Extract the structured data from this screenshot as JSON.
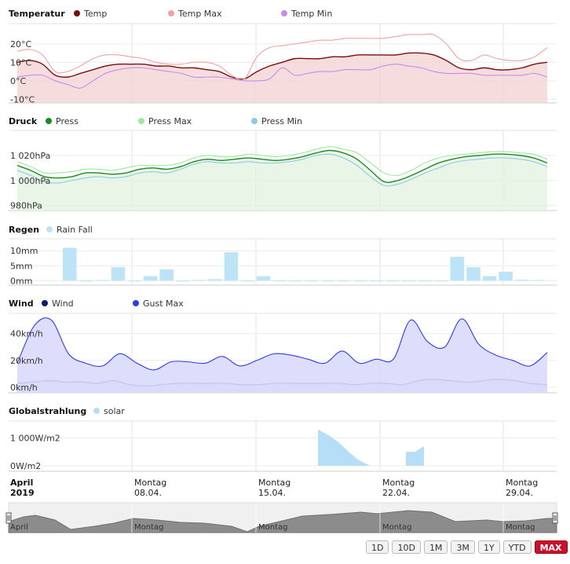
{
  "chart_data": [
    {
      "type": "area",
      "title": "Temperatur",
      "y_tick_labels": [
        "20°C",
        "10°C",
        "0°C",
        "-10°C"
      ],
      "y_ticks": [
        20,
        10,
        0,
        -10
      ],
      "ylim": [
        -12,
        31
      ],
      "series": [
        {
          "name": "Temp",
          "color": "#7a0d0d",
          "values": [
            10,
            11,
            9,
            3,
            2,
            4,
            6,
            8,
            9,
            9,
            9,
            8,
            8,
            7,
            7,
            6,
            5,
            2,
            1,
            5,
            8,
            10,
            12,
            12,
            12,
            13,
            13,
            14,
            14,
            14,
            14,
            15,
            15,
            14,
            11,
            7,
            6,
            7,
            6,
            6,
            7,
            9,
            10
          ]
        },
        {
          "name": "Temp Max",
          "color": "#f1a3a3",
          "values": [
            16,
            17,
            14,
            5,
            5,
            8,
            12,
            14,
            14,
            13,
            12,
            10,
            9,
            9,
            10,
            10,
            8,
            3,
            1,
            13,
            18,
            19,
            20,
            21,
            22,
            22,
            23,
            23,
            23,
            23,
            24,
            25,
            25,
            25,
            20,
            12,
            11,
            14,
            12,
            11,
            11,
            13,
            18
          ]
        },
        {
          "name": "Temp Min",
          "color": "#c58af0",
          "values": [
            2,
            3,
            3,
            0,
            -2,
            -4,
            0,
            4,
            6,
            7,
            7,
            6,
            5,
            4,
            2,
            2,
            2,
            1,
            0,
            0,
            1,
            7,
            3,
            4,
            5,
            5,
            6,
            6,
            6,
            8,
            9,
            8,
            7,
            5,
            4,
            4,
            4,
            3,
            3,
            3,
            3,
            4,
            2
          ]
        }
      ]
    },
    {
      "type": "area",
      "title": "Druck",
      "y_tick_labels": [
        "1 020hPa",
        "1 000hPa",
        "980hPa"
      ],
      "y_ticks": [
        1020,
        1000,
        980
      ],
      "ylim": [
        976,
        1040
      ],
      "series": [
        {
          "name": "Press",
          "color": "#1f8a1f",
          "values": [
            1012,
            1008,
            1003,
            1002,
            1003,
            1006,
            1006,
            1005,
            1006,
            1009,
            1010,
            1009,
            1011,
            1015,
            1017,
            1016,
            1017,
            1018,
            1017,
            1016,
            1017,
            1019,
            1022,
            1024,
            1022,
            1017,
            1008,
            999,
            1000,
            1004,
            1009,
            1014,
            1017,
            1019,
            1020,
            1021,
            1021,
            1020,
            1018,
            1014
          ]
        },
        {
          "name": "Press Max",
          "color": "#9bea9b",
          "values": [
            1015,
            1011,
            1006,
            1006,
            1007,
            1009,
            1009,
            1008,
            1010,
            1012,
            1012,
            1012,
            1014,
            1018,
            1020,
            1019,
            1019,
            1021,
            1020,
            1019,
            1020,
            1022,
            1025,
            1027,
            1025,
            1022,
            1014,
            1006,
            1004,
            1008,
            1014,
            1018,
            1020,
            1021,
            1022,
            1023,
            1023,
            1022,
            1021,
            1017
          ]
        },
        {
          "name": "Press Min",
          "color": "#90c8ea",
          "values": [
            1008,
            1004,
            999,
            998,
            1000,
            1002,
            1003,
            1002,
            1003,
            1006,
            1007,
            1006,
            1009,
            1013,
            1015,
            1014,
            1014,
            1015,
            1014,
            1014,
            1015,
            1017,
            1020,
            1021,
            1018,
            1012,
            1003,
            996,
            997,
            1001,
            1006,
            1010,
            1014,
            1016,
            1017,
            1018,
            1018,
            1017,
            1015,
            1011
          ]
        }
      ]
    },
    {
      "type": "bar",
      "title": "Regen",
      "y_tick_labels": [
        "10mm",
        "5mm",
        "0mm"
      ],
      "y_ticks": [
        10,
        5,
        0
      ],
      "ylim": [
        -1.5,
        14
      ],
      "series": [
        {
          "name": "Rain Fall",
          "color": "#bde3f7",
          "values": [
            11,
            0,
            0.2,
            4.5,
            0,
            1.5,
            3.8,
            0,
            0.2,
            0.5,
            9.5,
            0,
            1.5,
            0.1,
            0,
            0,
            0,
            0,
            0,
            0,
            0,
            0,
            0,
            0,
            8,
            4.5,
            1.5,
            3,
            0.3,
            0.2
          ]
        }
      ]
    },
    {
      "type": "area",
      "title": "Wind",
      "y_tick_labels": [
        "40km/h",
        "20km/h",
        "0km/h"
      ],
      "y_ticks": [
        40,
        20,
        0
      ],
      "ylim": [
        -4,
        55
      ],
      "series": [
        {
          "name": "Wind",
          "color": "#141a6b",
          "values": [
            3,
            4,
            5,
            4,
            4,
            3,
            5,
            2,
            1,
            2,
            3,
            3,
            3,
            3,
            2,
            2,
            3,
            3,
            3,
            3,
            3,
            2,
            3,
            3,
            2,
            5,
            6,
            5,
            4,
            5,
            6,
            5,
            3,
            2
          ]
        },
        {
          "name": "Gust Max",
          "color": "#2f3be3",
          "values": [
            18,
            46,
            50,
            25,
            18,
            16,
            25,
            18,
            13,
            19,
            19,
            18,
            23,
            16,
            20,
            25,
            24,
            21,
            18,
            27,
            18,
            21,
            21,
            50,
            34,
            30,
            51,
            32,
            24,
            20,
            16,
            26
          ]
        }
      ]
    },
    {
      "type": "area",
      "title": "Globalstrahlung",
      "y_tick_labels": [
        "1 000W/m2",
        "0W/m2"
      ],
      "y_ticks": [
        1000,
        0
      ],
      "ylim": [
        -200,
        1600
      ],
      "series": [
        {
          "name": "solar",
          "color": "#b7def7",
          "segments": [
            [
              1300,
              1100,
              850,
              500,
              200,
              20
            ],
            [
              500,
              500,
              700
            ]
          ]
        }
      ]
    }
  ],
  "x_axis": {
    "labels": [
      {
        "top": "April",
        "bottom": "2019",
        "bold": true
      },
      {
        "top": "Montag",
        "bottom": "08.04."
      },
      {
        "top": "Montag",
        "bottom": "15.04."
      },
      {
        "top": "Montag",
        "bottom": "22.04."
      },
      {
        "top": "Montag",
        "bottom": "29.04."
      }
    ]
  },
  "navigator": {
    "labels": [
      "April",
      "Montag",
      "Montag",
      "Montag",
      "Montag"
    ]
  },
  "range_buttons": [
    "1D",
    "10D",
    "1M",
    "3M",
    "1Y",
    "YTD",
    "MAX"
  ],
  "active_range": "MAX"
}
